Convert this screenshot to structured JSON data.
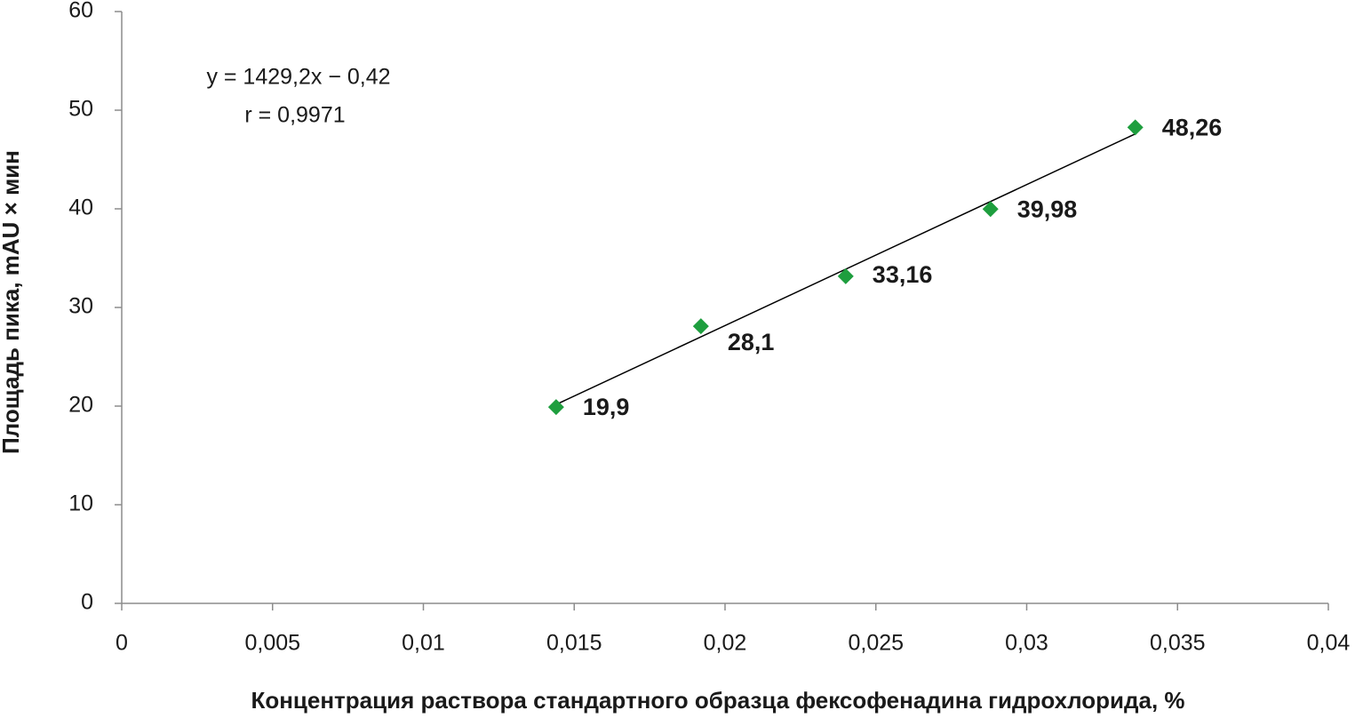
{
  "chart_data": {
    "type": "scatter",
    "x_label": "Концентрация раствора стандартного образца фексофенадина гидрохлорида, %",
    "y_label": "Площадь пика, mAU × мин",
    "annotations": [
      "y = 1429,2x − 0,42",
      "r = 0,9971"
    ],
    "x": [
      0.0144,
      0.0192,
      0.024,
      0.0288,
      0.0336
    ],
    "values": [
      19.9,
      28.1,
      33.16,
      39.98,
      48.26
    ],
    "value_labels": [
      "19,9",
      "28,1",
      "33,16",
      "39,98",
      "48,26"
    ],
    "color": "#1e9e3e",
    "trendline": true,
    "xlim": [
      0,
      0.04
    ],
    "xticks": [
      0,
      {
        "value": 0.005,
        "label": "0,005"
      },
      {
        "value": 0.01,
        "label": "0,01"
      },
      {
        "value": 0.015,
        "label": "0,015"
      },
      {
        "value": 0.02,
        "label": "0,02"
      },
      {
        "value": 0.025,
        "label": "0,025"
      },
      {
        "value": 0.03,
        "label": "0,03"
      },
      {
        "value": 0.035,
        "label": "0,035"
      },
      {
        "value": 0.04,
        "label": "0,04"
      }
    ],
    "ylim": [
      0,
      60
    ],
    "yticks": [
      0,
      10,
      20,
      30,
      40,
      50,
      60
    ]
  }
}
